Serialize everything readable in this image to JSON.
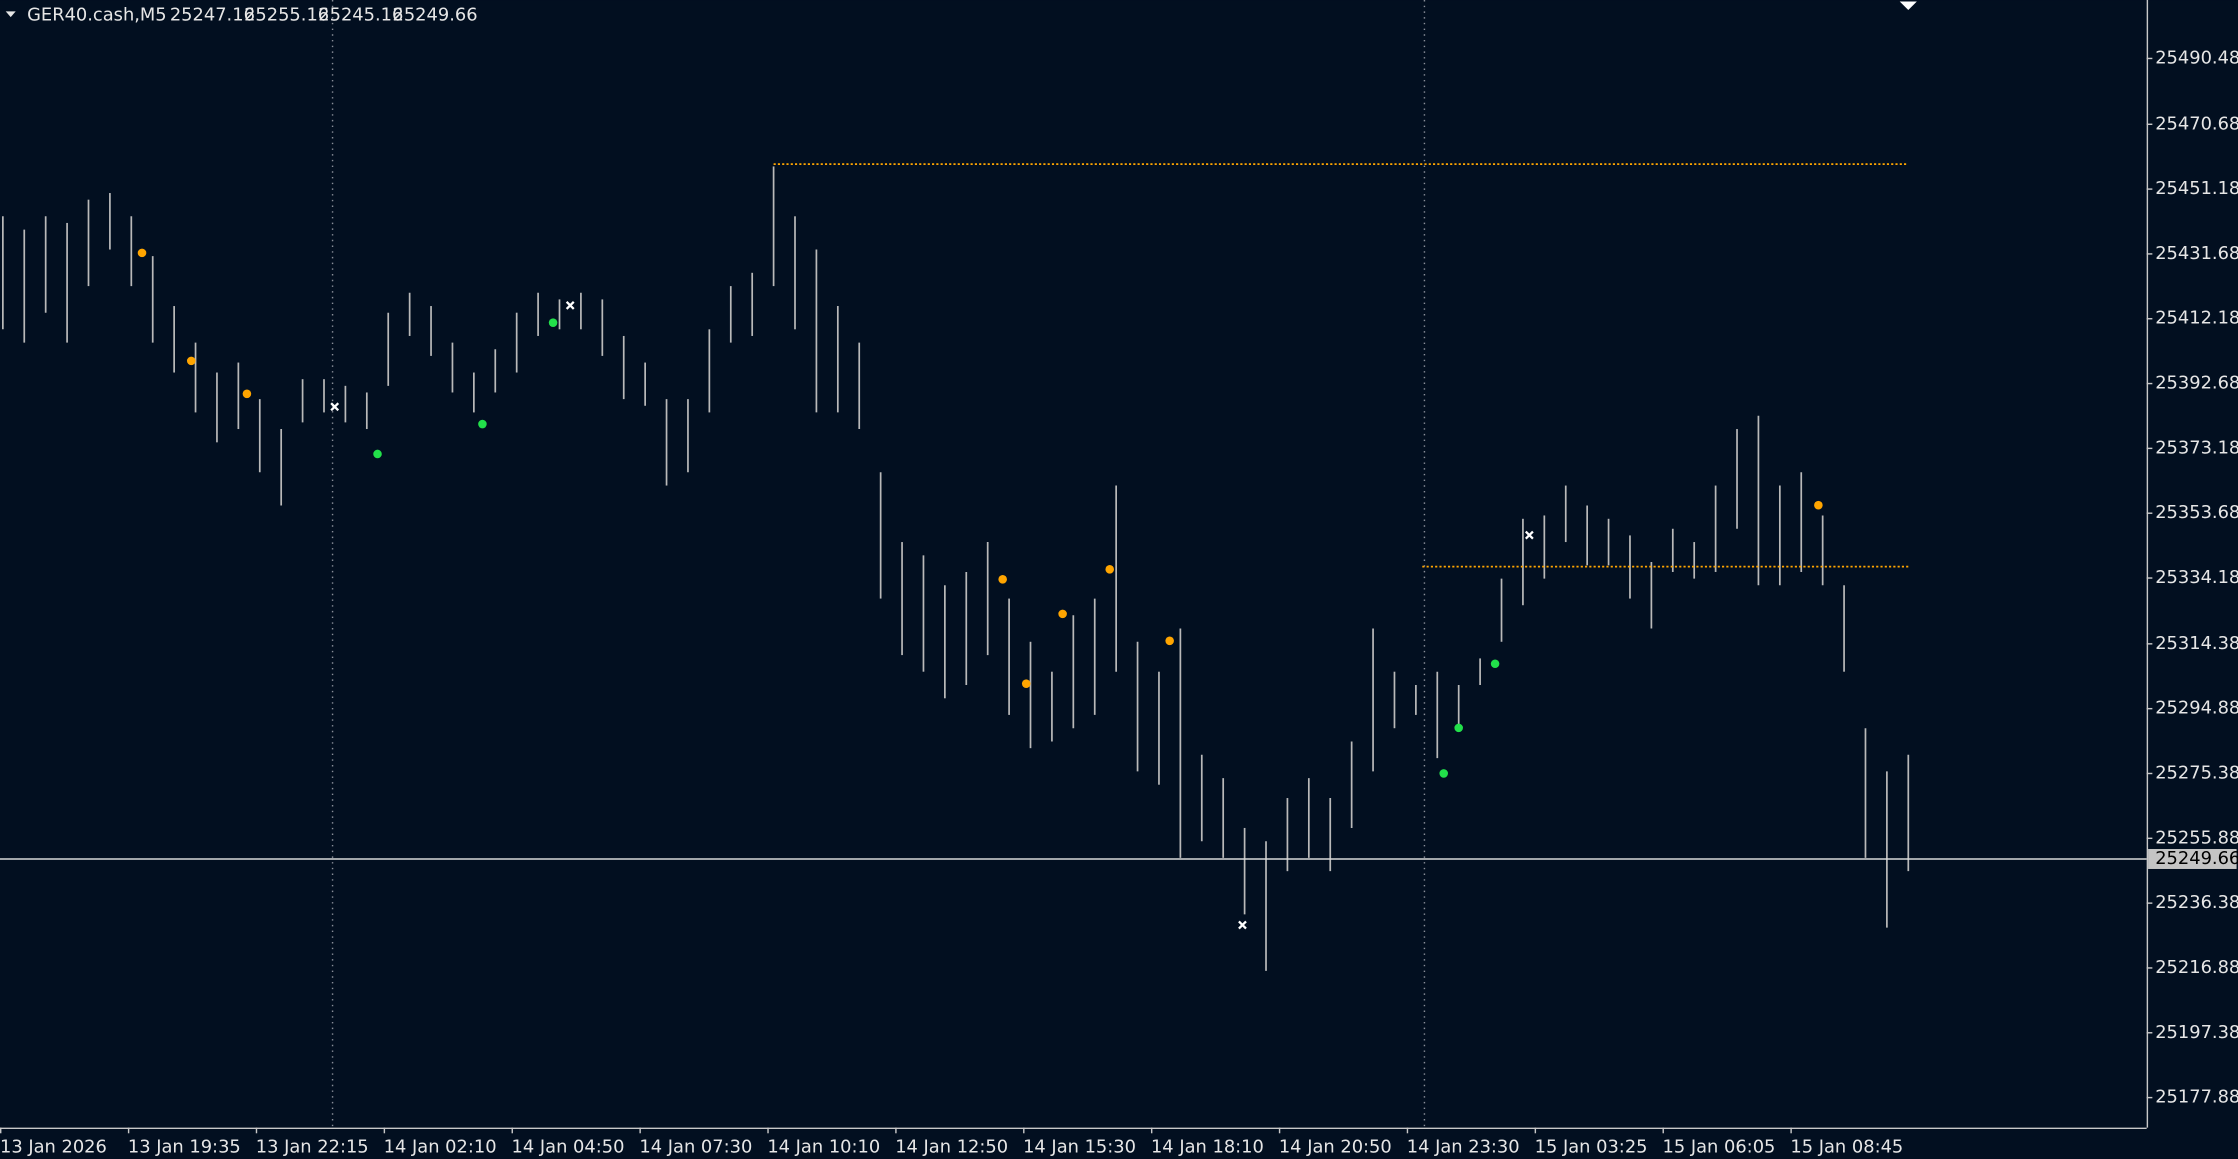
{
  "chart_data": {
    "type": "bar",
    "symbol": "GER40.cash,M5",
    "ohlc": [
      25247.16,
      25255.16,
      25245.16,
      25249.66
    ],
    "bar_color": "#b9b9b9",
    "background": "#020f20",
    "lows": [
      25409,
      25405,
      25414,
      25405,
      25422,
      25433,
      25422,
      25405,
      25396,
      25384,
      25375,
      25379,
      25366,
      25356,
      25381,
      25384,
      25381,
      25379,
      25392,
      25407,
      25401,
      25390,
      25384,
      25390,
      25396,
      25407,
      25409,
      25409,
      25401,
      25388,
      25386,
      25362,
      25366,
      25384,
      25405,
      25407,
      25422,
      25409,
      25384,
      25384,
      25379,
      25328,
      25311,
      25306,
      25298,
      25302,
      25311,
      25293,
      25283,
      25285,
      25289,
      25293,
      25306,
      25276,
      25272,
      25250,
      25255,
      25250,
      25233,
      25216,
      25246,
      25250,
      25246,
      25259,
      25276,
      25289,
      25293,
      25280,
      25289,
      25302,
      25315,
      25326,
      25334,
      25345,
      25338,
      25338,
      25328,
      25319,
      25336,
      25334,
      25336,
      25349,
      25332,
      25332,
      25336,
      25332,
      25306,
      25250,
      25229,
      25246
    ],
    "highs": [
      25443,
      25439,
      25443,
      25441,
      25448,
      25450,
      25443,
      25431,
      25416,
      25405,
      25396,
      25399,
      25388,
      25379,
      25394,
      25394,
      25392,
      25390,
      25414,
      25420,
      25416,
      25405,
      25396,
      25403,
      25414,
      25420,
      25418,
      25420,
      25418,
      25407,
      25399,
      25388,
      25388,
      25409,
      25422,
      25426,
      25458,
      25443,
      25433,
      25416,
      25405,
      25366,
      25345,
      25341,
      25332,
      25336,
      25345,
      25328,
      25315,
      25306,
      25323,
      25328,
      25362,
      25315,
      25306,
      25319,
      25281,
      25274,
      25259,
      25255,
      25268,
      25274,
      25268,
      25285,
      25319,
      25306,
      25302,
      25306,
      25302,
      25310,
      25334,
      25352,
      25353,
      25362,
      25356,
      25352,
      25347,
      25339,
      25349,
      25345,
      25362,
      25379,
      25383,
      25362,
      25366,
      25353,
      25332,
      25289,
      25276,
      25281
    ],
    "signals": [
      {
        "kind": "sell",
        "color": "#ffa500",
        "x": [
          6.5,
          8.8,
          11.4,
          46.7,
          47.8,
          49.5,
          51.7,
          54.5,
          84.8
        ],
        "values": [
          25432,
          25399.5,
          25389.6,
          25333.8,
          25302.4,
          25323.4,
          25336.8,
          25315.3,
          25356.1
        ]
      },
      {
        "kind": "buy",
        "color": "#22e04a",
        "x": [
          17.5,
          22.4,
          25.7,
          67.3,
          68,
          69.7
        ],
        "values": [
          25371.5,
          25380.5,
          25411,
          25275.4,
          25289.1,
          25308.4
        ]
      },
      {
        "kind": "exit",
        "color": "#ffffff",
        "x": [
          15.5,
          26.5,
          57.9,
          71.3
        ],
        "values": [
          25385.7,
          25416.2,
          25229.8,
          25347.1
        ]
      }
    ],
    "levels": [
      {
        "color": "#ffa500",
        "value": 25458.7,
        "from": 36,
        "to": 89
      },
      {
        "color": "#ffa500",
        "value": 25337.6,
        "from": 66.3,
        "to": 89
      }
    ],
    "ylim": [
      25168.86,
      25508.06
    ],
    "yticks": [
      25490.48,
      25470.68,
      25451.18,
      25431.68,
      25412.18,
      25392.68,
      25373.18,
      25353.68,
      25334.18,
      25314.38,
      25294.88,
      25275.38,
      25255.88,
      25236.38,
      25216.88,
      25197.38,
      25177.88
    ],
    "time_labels": [
      "13 Jan 2026",
      "13 Jan 19:35",
      "13 Jan 22:15",
      "14 Jan 02:10",
      "14 Jan 04:50",
      "14 Jan 07:30",
      "14 Jan 10:10",
      "14 Jan 12:50",
      "14 Jan 15:30",
      "14 Jan 18:10",
      "14 Jan 20:50",
      "14 Jan 23:30",
      "15 Jan 03:25",
      "15 Jan 06:05",
      "15 Jan 08:45"
    ]
  }
}
